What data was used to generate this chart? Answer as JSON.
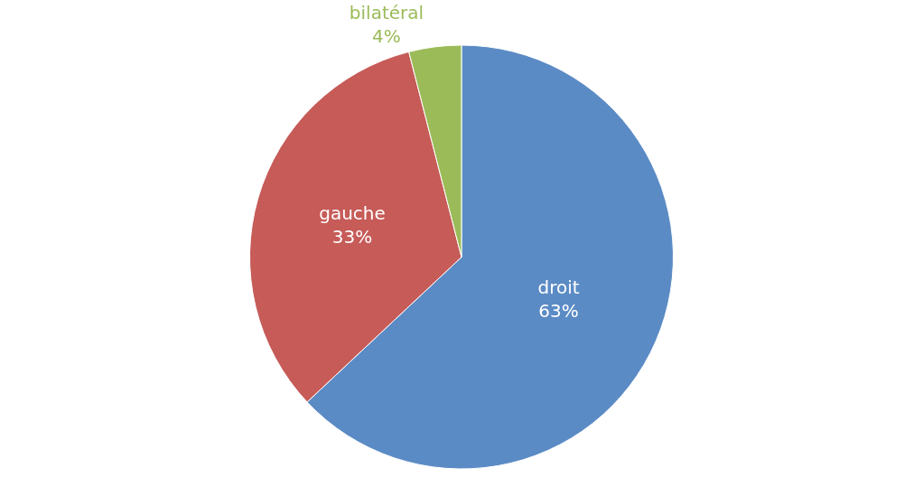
{
  "chart_data": {
    "type": "pie",
    "categories": [
      "droit",
      "gauche",
      "bilatéral"
    ],
    "values": [
      63,
      33,
      4
    ],
    "value_labels": [
      "63%",
      "33%",
      "4%"
    ],
    "colors": [
      "#5b8bc5",
      "#c65b58",
      "#9bbb59"
    ],
    "legend": false
  }
}
